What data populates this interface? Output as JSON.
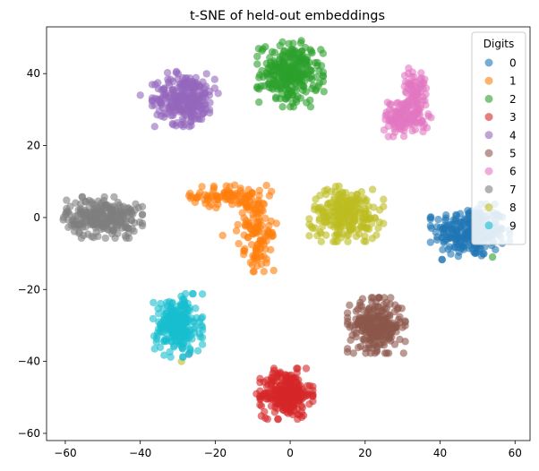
{
  "chart_data": {
    "type": "scatter",
    "title": "t-SNE of held-out embeddings",
    "xlabel": "",
    "ylabel": "",
    "xlim": [
      -65,
      64
    ],
    "ylim": [
      -62,
      53
    ],
    "x_ticks": [
      -60,
      -40,
      -20,
      0,
      20,
      40,
      60
    ],
    "y_ticks": [
      -60,
      -40,
      -20,
      0,
      20,
      40
    ],
    "grid": false,
    "legend": {
      "title": "Digits",
      "placement": "top-right"
    },
    "marker_opacity": 0.6,
    "series": [
      {
        "name": "0",
        "color": "#1f77b4",
        "clusters": [
          {
            "center": [
              48,
              -4
            ],
            "spread": [
              4.8,
              3.5
            ],
            "count": 260
          }
        ],
        "extra_points": []
      },
      {
        "name": "1",
        "color": "#ff7f0e",
        "clusters": [
          {
            "center": [
              -16,
              6
            ],
            "spread": [
              5,
              1.5
            ],
            "count": 90
          },
          {
            "center": [
              -10,
              -1
            ],
            "spread": [
              2.3,
              3.5
            ],
            "count": 60
          },
          {
            "center": [
              -8,
              -8
            ],
            "spread": [
              2,
              3.2
            ],
            "count": 60
          }
        ],
        "extra_points": [
          [
            -18,
            -5
          ],
          [
            -7,
            -15
          ]
        ]
      },
      {
        "name": "2",
        "color": "#2ca02c",
        "clusters": [
          {
            "center": [
              0,
              40
            ],
            "spread": [
              4,
              4.2
            ],
            "count": 260
          }
        ],
        "extra_points": [
          [
            9,
            35
          ],
          [
            54,
            -11
          ]
        ]
      },
      {
        "name": "3",
        "color": "#d62728",
        "clusters": [
          {
            "center": [
              -1,
              -49
            ],
            "spread": [
              3.2,
              3.2
            ],
            "count": 260
          }
        ],
        "extra_points": [
          [
            -9,
            -49
          ]
        ]
      },
      {
        "name": "4",
        "color": "#9467bd",
        "clusters": [
          {
            "center": [
              -28,
              33
            ],
            "spread": [
              4,
              3.5
            ],
            "count": 260
          }
        ],
        "extra_points": [
          [
            -40,
            34
          ],
          [
            -27,
            -38
          ]
        ]
      },
      {
        "name": "5",
        "color": "#8c564b",
        "clusters": [
          {
            "center": [
              23,
              -30
            ],
            "spread": [
              3.5,
              3.5
            ],
            "count": 260
          }
        ],
        "extra_points": []
      },
      {
        "name": "6",
        "color": "#e377c2",
        "clusters": [
          {
            "center": [
              31,
              28
            ],
            "spread": [
              3,
              2.5
            ],
            "count": 130
          },
          {
            "center": [
              33,
              36
            ],
            "spread": [
              1.5,
              2.5
            ],
            "count": 60
          }
        ],
        "extra_points": [
          [
            26,
            32
          ]
        ]
      },
      {
        "name": "7",
        "color": "#7f7f7f",
        "clusters": [
          {
            "center": [
              -50,
              0
            ],
            "spread": [
              4.8,
              2.6
            ],
            "count": 260
          }
        ],
        "extra_points": []
      },
      {
        "name": "8",
        "color": "#bcbd22",
        "clusters": [
          {
            "center": [
              15,
              1
            ],
            "spread": [
              4.5,
              3.5
            ],
            "count": 240
          }
        ],
        "extra_points": [
          [
            6,
            -3
          ],
          [
            -29,
            -40
          ]
        ]
      },
      {
        "name": "9",
        "color": "#17becf",
        "clusters": [
          {
            "center": [
              -30,
              -30
            ],
            "spread": [
              3,
              4
            ],
            "count": 240
          }
        ],
        "extra_points": []
      }
    ]
  }
}
